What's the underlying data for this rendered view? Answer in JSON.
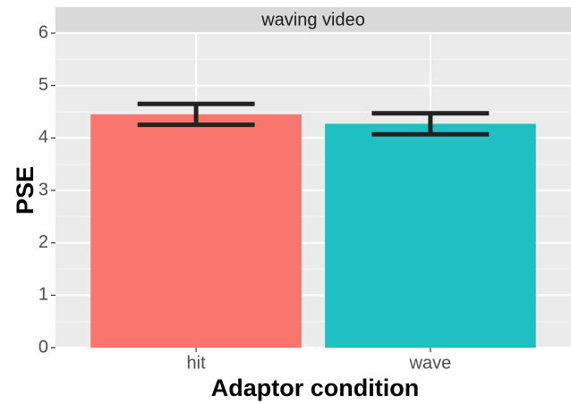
{
  "chart_data": {
    "type": "bar",
    "title": "waving video",
    "x_label": "Adaptor condition",
    "y_label": "PSE",
    "categories": [
      "hit",
      "wave"
    ],
    "values": [
      4.45,
      4.27
    ],
    "errors": [
      0.2,
      0.2
    ],
    "colors": [
      "#f8766d",
      "#1fbfc4"
    ],
    "ylim": [
      0,
      6
    ],
    "yticks": [
      0,
      1,
      2,
      3,
      4,
      5,
      6
    ],
    "grid": true
  }
}
